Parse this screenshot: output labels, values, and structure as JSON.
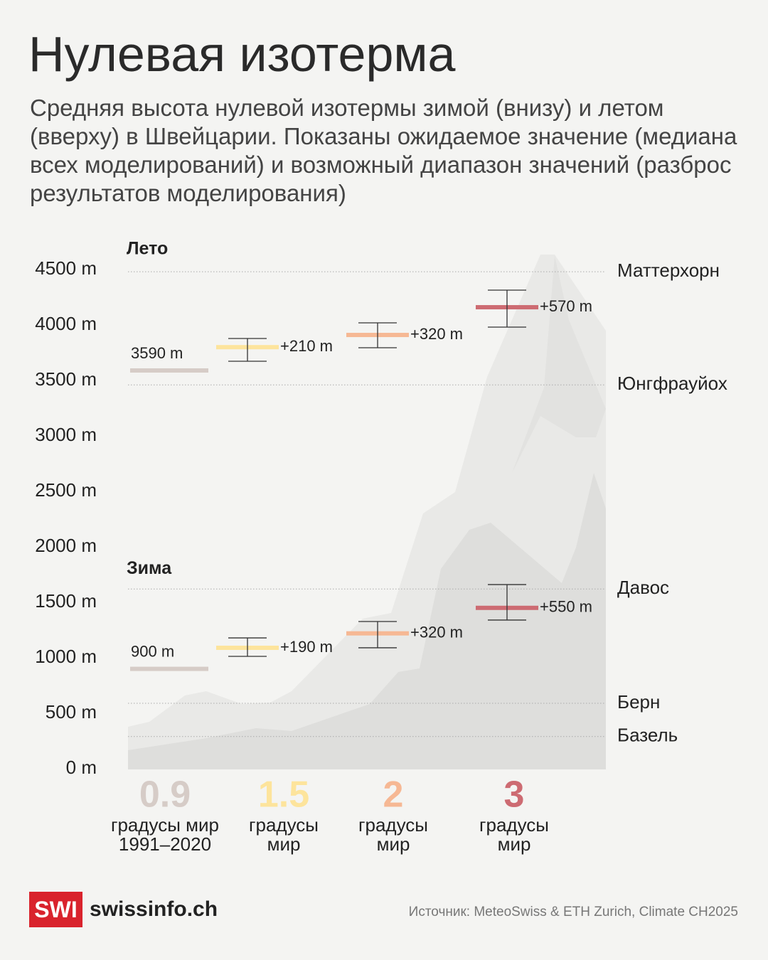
{
  "chart_data": {
    "type": "range",
    "title": "Нулевая изотерма",
    "subtitle": "Средняя высота нулевой изотермы зимой (внизу) и летом (вверху) в Швейцарии. Показаны ожидаемое значение (медиана всех моделирований) и возможный диапазон значений (разброс результатов моделирования)",
    "categories": [
      "0.9",
      "1.5",
      "2",
      "3"
    ],
    "category_notes": [
      "градусы мир 1991–2020",
      "градусы мир",
      "градусы мир",
      "градусы мир"
    ],
    "colors": [
      "#d6ccc7",
      "#fde49c",
      "#f6b894",
      "#cd6b72"
    ],
    "ylim": [
      0,
      4500
    ],
    "yticks": [
      {
        "value": 0,
        "label": "0 m"
      },
      {
        "value": 500,
        "label": "500 m"
      },
      {
        "value": 1000,
        "label": "1000 m"
      },
      {
        "value": 1500,
        "label": "1500 m"
      },
      {
        "value": 2000,
        "label": "2000 m"
      },
      {
        "value": 2500,
        "label": "2500 m"
      },
      {
        "value": 3000,
        "label": "3000 m"
      },
      {
        "value": 3500,
        "label": "3500 m"
      },
      {
        "value": 4000,
        "label": "4000 m"
      },
      {
        "value": 4500,
        "label": "4500 m"
      }
    ],
    "seasons": [
      {
        "name": "Лето",
        "baseline": 3590,
        "baseline_label": "3590 m",
        "change": [
          210,
          320,
          570
        ],
        "change_labels": [
          "+210 m",
          "+320 m",
          "+570 m"
        ],
        "low": [
          3673,
          3795,
          3981
        ],
        "high": [
          3878,
          4019,
          4314
        ]
      },
      {
        "name": "Зима",
        "baseline": 900,
        "baseline_label": "900 m",
        "change": [
          190,
          320,
          550
        ],
        "change_labels": [
          "+190 m",
          "+320 m",
          "+550 m"
        ],
        "low": [
          1013,
          1090,
          1340
        ],
        "high": [
          1179,
          1327,
          1660
        ]
      }
    ],
    "references": [
      {
        "name": "Маттерхорн",
        "value": 4480
      },
      {
        "name": "Юнгфрауйох",
        "value": 3460
      },
      {
        "name": "Давос",
        "value": 1620
      },
      {
        "name": "Берн",
        "value": 590
      },
      {
        "name": "Базель",
        "value": 290
      }
    ]
  },
  "footer": {
    "logo": "SWI",
    "brand": "swissinfo.ch",
    "source": "Источник: MeteoSwiss & ETH Zurich, Climate CH2025"
  }
}
